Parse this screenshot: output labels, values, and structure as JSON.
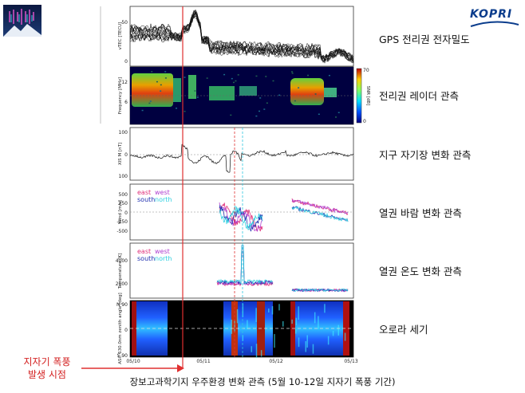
{
  "header": {
    "logo_text": "KOPRI",
    "left_logo_icon": "aurora-logo-icon"
  },
  "panel_labels": [
    "GPS 전리권 전자밀도",
    "전리권 레이더 관측",
    "지구 자기장 변화 관측",
    "열권 바람 변화 관측",
    "열권 온도 변화 관측",
    "오로라 세기"
  ],
  "storm_onset_label": [
    "지자기 폭풍",
    "발생 시점"
  ],
  "caption": "장보고과학기지 우주환경 변화 관측 (5월 10-12일 지자기 폭풍 기간)",
  "colors": {
    "onset_line": "#e03030",
    "dashed_red": "#e03030",
    "dashed_cyan": "#2ec8e0",
    "east": "#e0307a",
    "west": "#b040d0",
    "south": "#2030b0",
    "north": "#30d0e0"
  },
  "chart_data": [
    {
      "type": "line",
      "panel": "vtec",
      "ylabel": "vTEC [TECU]",
      "yticks": [
        "50",
        "0"
      ],
      "ylim": [
        0,
        60
      ]
    },
    {
      "type": "heatmap",
      "panel": "radar",
      "ylabel": "Frequency [MHz]",
      "yticks": [
        "12",
        "6"
      ],
      "colorbar_label": "SNR [dB]",
      "colorbar_ticks": [
        "70",
        "0"
      ]
    },
    {
      "type": "line",
      "panel": "magnetometer",
      "ylabel": "XIS M [nT]",
      "yticks": [
        "100",
        "0",
        "100"
      ],
      "ylim": [
        -100,
        100
      ]
    },
    {
      "type": "line",
      "panel": "wind",
      "ylabel": "Wind [m/s]",
      "yticks": [
        "500",
        "250",
        "0",
        "-250",
        "-500"
      ],
      "ylim": [
        -500,
        500
      ],
      "legend": [
        "east",
        "west",
        "south",
        "north"
      ]
    },
    {
      "type": "line",
      "panel": "temperature",
      "ylabel": "Temperature [K]",
      "yticks": [
        "4000",
        "2000"
      ],
      "ylim": [
        800,
        4800
      ],
      "legend": [
        "east",
        "west",
        "south",
        "north"
      ]
    },
    {
      "type": "heatmap",
      "panel": "aurora",
      "ylabel": "ASC 630.0nm zenith angle [deg]",
      "yticks": [
        "N 90",
        "0",
        "S 90"
      ],
      "xticks": [
        "05/10",
        "05/11",
        "05/12",
        "05/13"
      ]
    }
  ]
}
